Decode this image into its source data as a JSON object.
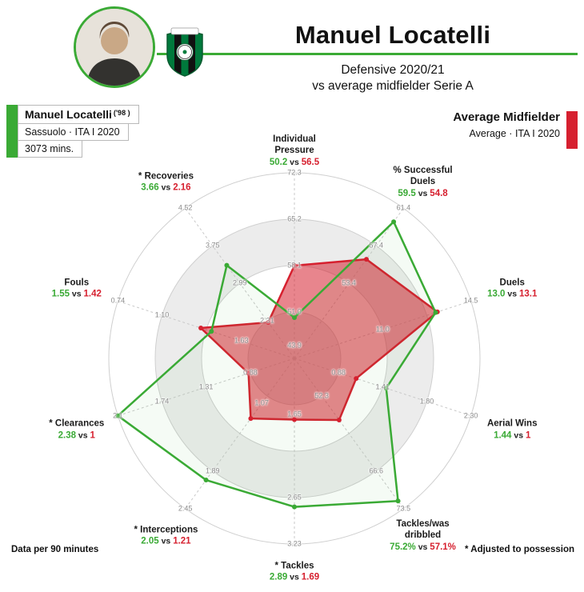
{
  "header": {
    "title": "Manuel Locatelli",
    "subtitle_line1": "Defensive 2020/21",
    "subtitle_line2": "vs average midfielder Serie A"
  },
  "player_card": {
    "name": "Manuel Locatelli",
    "birth": "('98 )",
    "club": "Sassuolo · ITA I 2020",
    "minutes": "3073 mins."
  },
  "average_card": {
    "name": "Average Midfielder",
    "sub": "Average · ITA I 2020"
  },
  "notes": {
    "left": "Data per 90 minutes",
    "right": "* Adjusted to possession"
  },
  "colors": {
    "player_green": "#3aaa35",
    "average_red": "#d6202f",
    "ring_fill": "#ececec",
    "ring_stroke": "#cfcfcf"
  },
  "chart_data": {
    "type": "radar",
    "vs_separator": "vs",
    "series": [
      {
        "name": "Manuel Locatelli",
        "color": "#3aaa35"
      },
      {
        "name": "Average Midfielder",
        "color": "#d6202f"
      }
    ],
    "axes": [
      {
        "label_lines": [
          "Individual",
          "Pressure"
        ],
        "player": "50.2",
        "avg": "56.5",
        "player_frac": 0.22,
        "avg_frac": 0.5,
        "ticks": [
          [
            1,
            "72.3"
          ],
          [
            0.75,
            "65.2"
          ],
          [
            0.5,
            "58.1"
          ],
          [
            0.25,
            "51.0"
          ],
          [
            0.07,
            "43.9"
          ]
        ]
      },
      {
        "label_lines": [
          "% Successful",
          "Duels"
        ],
        "player": "59.5",
        "avg": "54.8",
        "player_frac": 0.91,
        "avg_frac": 0.66,
        "ticks": [
          [
            1,
            "61.4"
          ],
          [
            0.75,
            "57.4"
          ],
          [
            0.5,
            "53.4"
          ]
        ]
      },
      {
        "label_lines": [
          "Duels"
        ],
        "player": "13.0",
        "avg": "13.1",
        "player_frac": 0.8,
        "avg_frac": 0.81,
        "ticks": [
          [
            1,
            "14.5"
          ],
          [
            0.5,
            "11.0"
          ]
        ]
      },
      {
        "label_lines": [
          "Aerial Wins"
        ],
        "player": "1.44",
        "avg": "1",
        "player_frac": 0.52,
        "avg_frac": 0.35,
        "ticks": [
          [
            1,
            "2.30"
          ],
          [
            0.75,
            "1.80"
          ],
          [
            0.5,
            "1.41"
          ],
          [
            0.25,
            "0.88"
          ]
        ]
      },
      {
        "label_lines": [
          "Tackles/was",
          "dribbled"
        ],
        "player": "75.2%",
        "avg": "57.1%",
        "player_frac": 0.95,
        "avg_frac": 0.41,
        "ticks": [
          [
            1,
            "73.5"
          ],
          [
            0.75,
            "66.6"
          ],
          [
            0.25,
            "52.3"
          ]
        ]
      },
      {
        "label_lines": [
          "* Tackles"
        ],
        "player": "2.89",
        "avg": "1.69",
        "player_frac": 0.8,
        "avg_frac": 0.33,
        "ticks": [
          [
            1,
            "3.23"
          ],
          [
            0.75,
            "2.65"
          ],
          [
            0.3,
            "1.65"
          ]
        ]
      },
      {
        "label_lines": [
          "* Interceptions"
        ],
        "player": "2.05",
        "avg": "1.21",
        "player_frac": 0.81,
        "avg_frac": 0.4,
        "ticks": [
          [
            1,
            "2.45"
          ],
          [
            0.75,
            "1.89"
          ],
          [
            0.3,
            "1.07"
          ]
        ]
      },
      {
        "label_lines": [
          "* Clearances"
        ],
        "player": "2.38",
        "avg": "1",
        "player_frac": 1.0,
        "avg_frac": 0.26,
        "ticks": [
          [
            1,
            "2.1"
          ],
          [
            0.75,
            "1.74"
          ],
          [
            0.5,
            "1.31"
          ],
          [
            0.25,
            "0.88"
          ]
        ]
      },
      {
        "label_lines": [
          "Fouls"
        ],
        "player": "1.55",
        "avg": "1.42",
        "player_frac": 0.47,
        "avg_frac": 0.53,
        "ticks": [
          [
            1,
            "0.74"
          ],
          [
            0.75,
            "1.10"
          ],
          [
            0.3,
            "1.63"
          ]
        ]
      },
      {
        "label_lines": [
          "* Recoveries"
        ],
        "player": "3.66",
        "avg": "2.16",
        "player_frac": 0.62,
        "avg_frac": 0.24,
        "ticks": [
          [
            1,
            "4.52"
          ],
          [
            0.75,
            "3.75"
          ],
          [
            0.5,
            "2.99"
          ],
          [
            0.25,
            "2.31"
          ]
        ]
      }
    ]
  }
}
